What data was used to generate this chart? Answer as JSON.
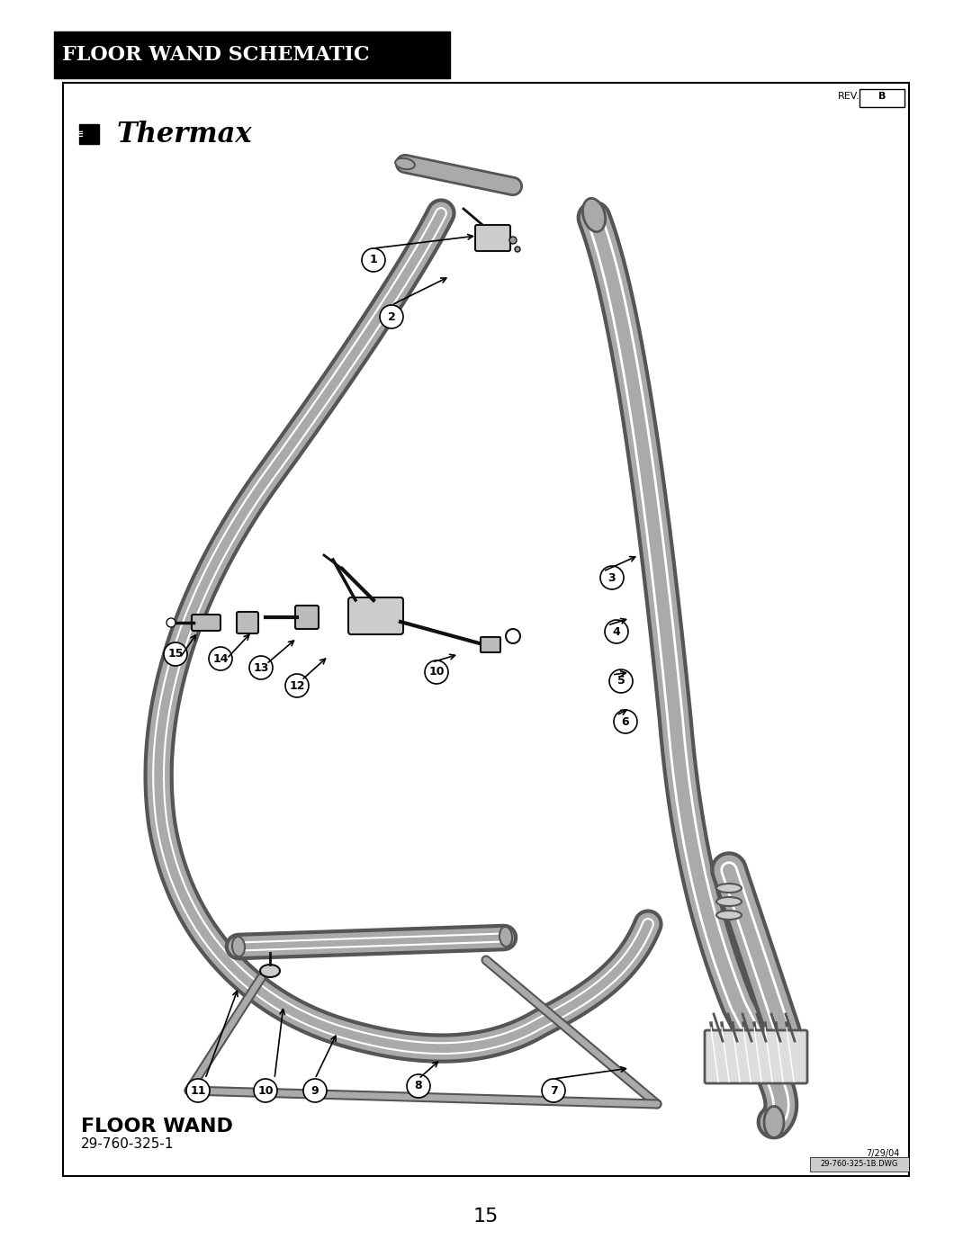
{
  "title": "FLOOR WAND SCHEMATIC",
  "page_number": "15",
  "part_name": "FLOOR WAND",
  "part_number": "29-760-325-1",
  "rev": "B",
  "date": "7/29/04",
  "drawing_number": "29-760-325-1B.DWG",
  "bg_color": "#ffffff",
  "header_bg": "#000000",
  "header_text_color": "#ffffff",
  "border_color": "#000000",
  "callouts": [
    1,
    2,
    3,
    4,
    5,
    6,
    7,
    8,
    9,
    10,
    11,
    12,
    13,
    14,
    15
  ]
}
